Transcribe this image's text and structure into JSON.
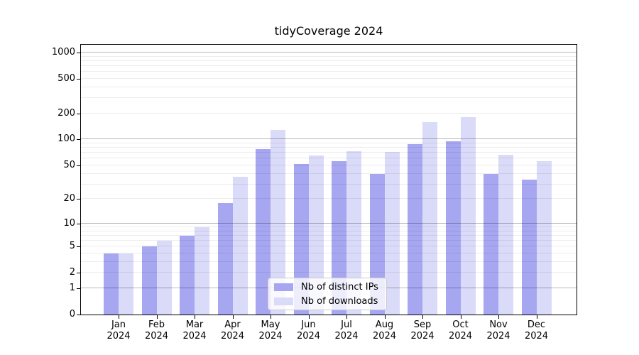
{
  "title": "tidyCoverage 2024",
  "chart_data": {
    "type": "bar",
    "title": "tidyCoverage 2024",
    "subtitle": "",
    "categories": [
      "Jan 2024",
      "Feb 2024",
      "Mar 2024",
      "Apr 2024",
      "May 2024",
      "Jun 2024",
      "Jul 2024",
      "Aug 2024",
      "Sep 2024",
      "Oct 2024",
      "Nov 2024",
      "Dec 2024"
    ],
    "series": [
      {
        "name": "Nb of distinct IPs",
        "color": "#a6a6f1",
        "values": [
          4,
          5,
          7,
          18,
          78,
          52,
          56,
          40,
          88,
          95,
          40,
          34
        ]
      },
      {
        "name": "Nb of downloads",
        "color": "#dadaf9",
        "values": [
          4,
          6,
          9,
          37,
          130,
          65,
          73,
          72,
          160,
          180,
          67,
          56
        ]
      }
    ],
    "xlabel": "",
    "ylabel": "",
    "y_scale": "log10(1+value)",
    "y_tick_labels": [
      0,
      1,
      2,
      5,
      10,
      20,
      50,
      100,
      200,
      500,
      1000
    ],
    "y_grid_major": [
      1,
      10,
      100,
      1000
    ],
    "y_grid_minor": [
      2,
      3,
      4,
      5,
      6,
      7,
      8,
      9,
      20,
      30,
      40,
      50,
      60,
      70,
      80,
      90,
      200,
      300,
      400,
      500,
      600,
      700,
      800,
      900
    ],
    "ylim": [
      0,
      1230
    ],
    "grid": "on",
    "legend_position": "lower-center-inside"
  },
  "colors": {
    "bar_ips": "#a6a6f1",
    "bar_downloads": "#dadaf9",
    "grid_major": "#b8b8b8",
    "grid_minor": "#ececec",
    "spine": "#000000",
    "legend_border": "#cccccc"
  }
}
